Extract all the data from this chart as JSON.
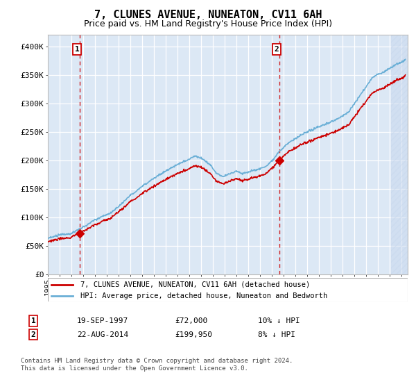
{
  "title": "7, CLUNES AVENUE, NUNEATON, CV11 6AH",
  "subtitle": "Price paid vs. HM Land Registry's House Price Index (HPI)",
  "hpi_label": "HPI: Average price, detached house, Nuneaton and Bedworth",
  "property_label": "7, CLUNES AVENUE, NUNEATON, CV11 6AH (detached house)",
  "sale1_date": "19-SEP-1997",
  "sale1_price": 72000,
  "sale1_note": "10% ↓ HPI",
  "sale2_date": "22-AUG-2014",
  "sale2_price": 199950,
  "sale2_note": "8% ↓ HPI",
  "sale1_x": 1997.72,
  "sale2_x": 2014.64,
  "footer": "Contains HM Land Registry data © Crown copyright and database right 2024.\nThis data is licensed under the Open Government Licence v3.0.",
  "ylim": [
    0,
    420000
  ],
  "xlim": [
    1995.0,
    2025.5
  ],
  "hpi_color": "#6aafd6",
  "property_color": "#cc0000",
  "vline_color": "#cc0000",
  "bg_color": "#dce8f5",
  "grid_color": "#ffffff",
  "title_fontsize": 11,
  "subtitle_fontsize": 9
}
